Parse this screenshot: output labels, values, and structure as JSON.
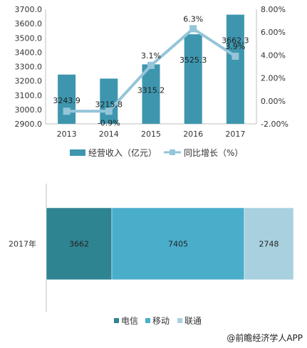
{
  "chart_data": [
    {
      "type": "bar+line",
      "categories": [
        "2013",
        "2014",
        "2015",
        "2016",
        "2017"
      ],
      "series": [
        {
          "name": "经营收入（亿元）",
          "type": "bar",
          "axis": "left",
          "values": [
            3243.9,
            3215.8,
            3315.2,
            3525.3,
            3662.3
          ],
          "labels": [
            "3243.9",
            "3215.8",
            "3315.2",
            "3525.3",
            "3662.3"
          ]
        },
        {
          "name": "同比增长（%）",
          "type": "line",
          "axis": "right",
          "values": [
            -0.9,
            -0.9,
            3.1,
            6.3,
            3.9
          ],
          "labels": [
            "",
            "-0.9%",
            "3.1%",
            "6.3%",
            "3.9%"
          ]
        }
      ],
      "y_left": {
        "min": 2900,
        "max": 3700,
        "ticks": [
          "2900.0",
          "3000.0",
          "3100.0",
          "3200.0",
          "3300.0",
          "3400.0",
          "3500.0",
          "3600.0",
          "3700.0"
        ]
      },
      "y_right": {
        "min": -2,
        "max": 8,
        "ticks": [
          "-2.00%",
          "0.00%",
          "2.00%",
          "4.00%",
          "6.00%",
          "8.00%"
        ]
      },
      "legend": "bottom",
      "grid": false,
      "colors": {
        "bar": "#3d96ae",
        "line": "#94c5d9"
      }
    },
    {
      "type": "stacked-bar-horizontal",
      "categories": [
        "2017年"
      ],
      "series": [
        {
          "name": "电信",
          "values": [
            3662
          ],
          "label": "3662",
          "color": "#2f8492"
        },
        {
          "name": "移动",
          "values": [
            7405
          ],
          "label": "7405",
          "color": "#4aaecb"
        },
        {
          "name": "联通",
          "values": [
            2748
          ],
          "label": "2748",
          "color": "#a9d0df"
        }
      ],
      "legend": "bottom",
      "grid": false
    }
  ],
  "credit": "@前瞻经济学人APP"
}
